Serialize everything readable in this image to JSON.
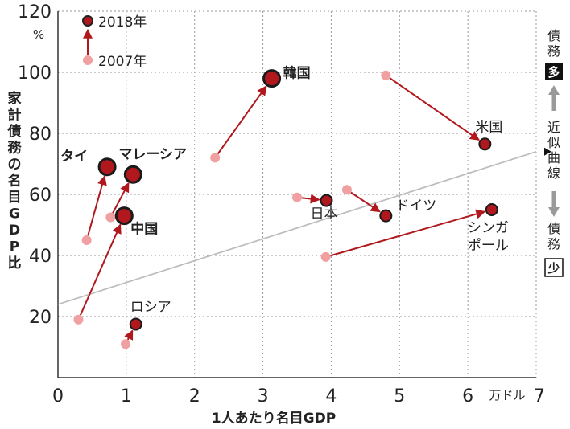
{
  "chart_data": {
    "type": "scatter",
    "xlabel": "1人あたり名目GDP",
    "ylabel": "家計債務の名目GDP比",
    "x_unit": "万ドル",
    "y_unit": "%",
    "xlim": [
      0,
      7
    ],
    "ylim": [
      0,
      120
    ],
    "x_ticks": [
      "0",
      "1",
      "2",
      "3",
      "4",
      "5",
      "6",
      "7"
    ],
    "y_ticks": [
      "20",
      "40",
      "60",
      "80",
      "100",
      "120"
    ],
    "grid": true,
    "legend": {
      "placement": "top-left",
      "from_label": "2007年",
      "to_label": "2018年",
      "from_color": "#f0a0a0",
      "to_color": "#b0181e"
    },
    "trend_line": {
      "label": "近似曲線",
      "x": [
        0,
        7
      ],
      "y": [
        24,
        74
      ]
    },
    "side_legend": {
      "top_word": "債務",
      "top_box": "多",
      "middle": "近似曲線",
      "bottom_word": "債務",
      "bottom_box": "少"
    },
    "series": [
      {
        "name": "韓国",
        "from": [
          2.3,
          72
        ],
        "to": [
          3.13,
          98
        ],
        "bold": true
      },
      {
        "name": "米国",
        "from": [
          4.8,
          99
        ],
        "to": [
          6.25,
          76.5
        ],
        "bold": false
      },
      {
        "name": "タイ",
        "from": [
          0.42,
          45
        ],
        "to": [
          0.72,
          69
        ],
        "bold": true
      },
      {
        "name": "マレーシア",
        "from": [
          0.77,
          52.5
        ],
        "to": [
          1.1,
          66.5
        ],
        "bold": true
      },
      {
        "name": "中国",
        "from": [
          0.3,
          19
        ],
        "to": [
          0.97,
          53
        ],
        "bold": true
      },
      {
        "name": "日本",
        "from": [
          3.5,
          59
        ],
        "to": [
          3.93,
          58
        ],
        "bold": false
      },
      {
        "name": "ドイツ",
        "from": [
          4.23,
          61.5
        ],
        "to": [
          4.8,
          53
        ],
        "bold": false
      },
      {
        "name": "シンガポール",
        "label_lines": [
          "シンガ",
          "ポール"
        ],
        "from": [
          3.92,
          39.5
        ],
        "to": [
          6.35,
          55
        ],
        "bold": false
      },
      {
        "name": "ロシア",
        "from": [
          0.99,
          11
        ],
        "to": [
          1.14,
          17.5
        ],
        "bold": false
      }
    ]
  }
}
